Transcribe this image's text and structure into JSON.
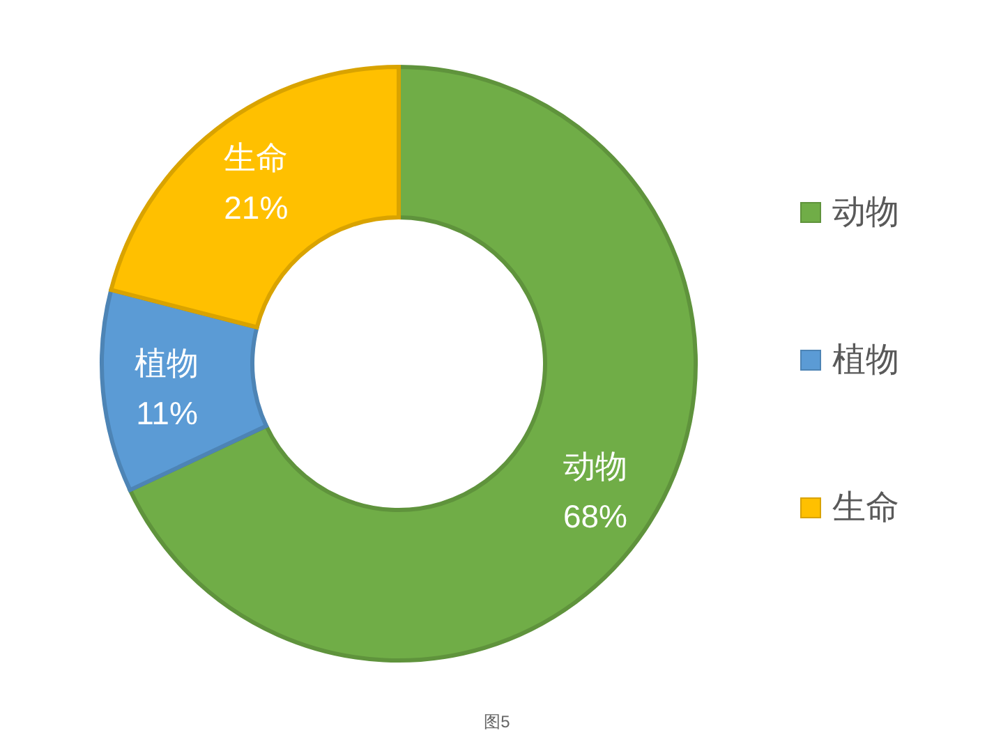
{
  "chart_data": {
    "type": "donut",
    "categories": [
      "动物",
      "植物",
      "生命"
    ],
    "values": [
      68,
      11,
      21
    ],
    "colors": [
      "#70ad47",
      "#5b9bd5",
      "#ffc000"
    ],
    "value_labels": [
      "68%",
      "11%",
      "21%"
    ],
    "legend": "right",
    "annotations": [
      "图5"
    ]
  }
}
